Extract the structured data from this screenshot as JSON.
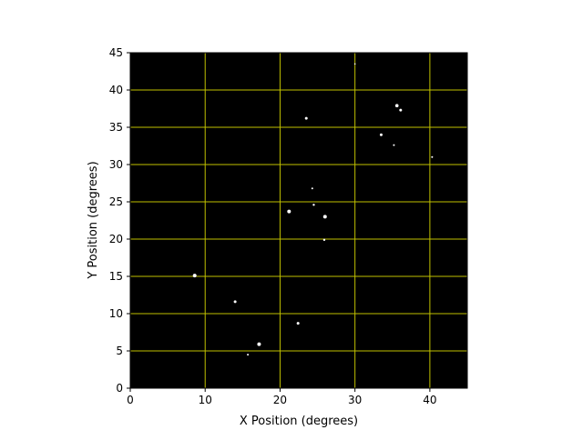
{
  "chart_data": {
    "type": "scatter",
    "title": "",
    "xlabel": "X Position (degrees)",
    "ylabel": "Y Position (degrees)",
    "xlim": [
      0,
      45
    ],
    "ylim": [
      0,
      45
    ],
    "xticks": [
      0,
      10,
      20,
      30,
      40
    ],
    "yticks": [
      0,
      5,
      10,
      15,
      20,
      25,
      30,
      35,
      40,
      45
    ],
    "grid": true,
    "colors": {
      "background": "#000000",
      "grid": "#c0c000",
      "points": "#ffffff"
    },
    "points": [
      {
        "x": 8.6,
        "y": 15.1,
        "s": 2
      },
      {
        "x": 14.0,
        "y": 11.6,
        "s": 1.5
      },
      {
        "x": 17.2,
        "y": 5.9,
        "s": 2
      },
      {
        "x": 15.7,
        "y": 4.5,
        "s": 1
      },
      {
        "x": 21.2,
        "y": 23.7,
        "s": 2
      },
      {
        "x": 23.5,
        "y": 36.2,
        "s": 1.5
      },
      {
        "x": 22.4,
        "y": 8.7,
        "s": 1.5
      },
      {
        "x": 24.3,
        "y": 26.8,
        "s": 1
      },
      {
        "x": 24.5,
        "y": 24.6,
        "s": 1.2
      },
      {
        "x": 26.0,
        "y": 23.0,
        "s": 2
      },
      {
        "x": 25.9,
        "y": 19.9,
        "s": 1.2
      },
      {
        "x": 33.5,
        "y": 34.0,
        "s": 1.5
      },
      {
        "x": 35.6,
        "y": 37.9,
        "s": 1.8
      },
      {
        "x": 36.1,
        "y": 37.3,
        "s": 1.5
      },
      {
        "x": 35.2,
        "y": 32.6,
        "s": 1
      },
      {
        "x": 40.3,
        "y": 31.0,
        "s": 1
      },
      {
        "x": 30.0,
        "y": 43.5,
        "s": 0.8
      }
    ]
  }
}
